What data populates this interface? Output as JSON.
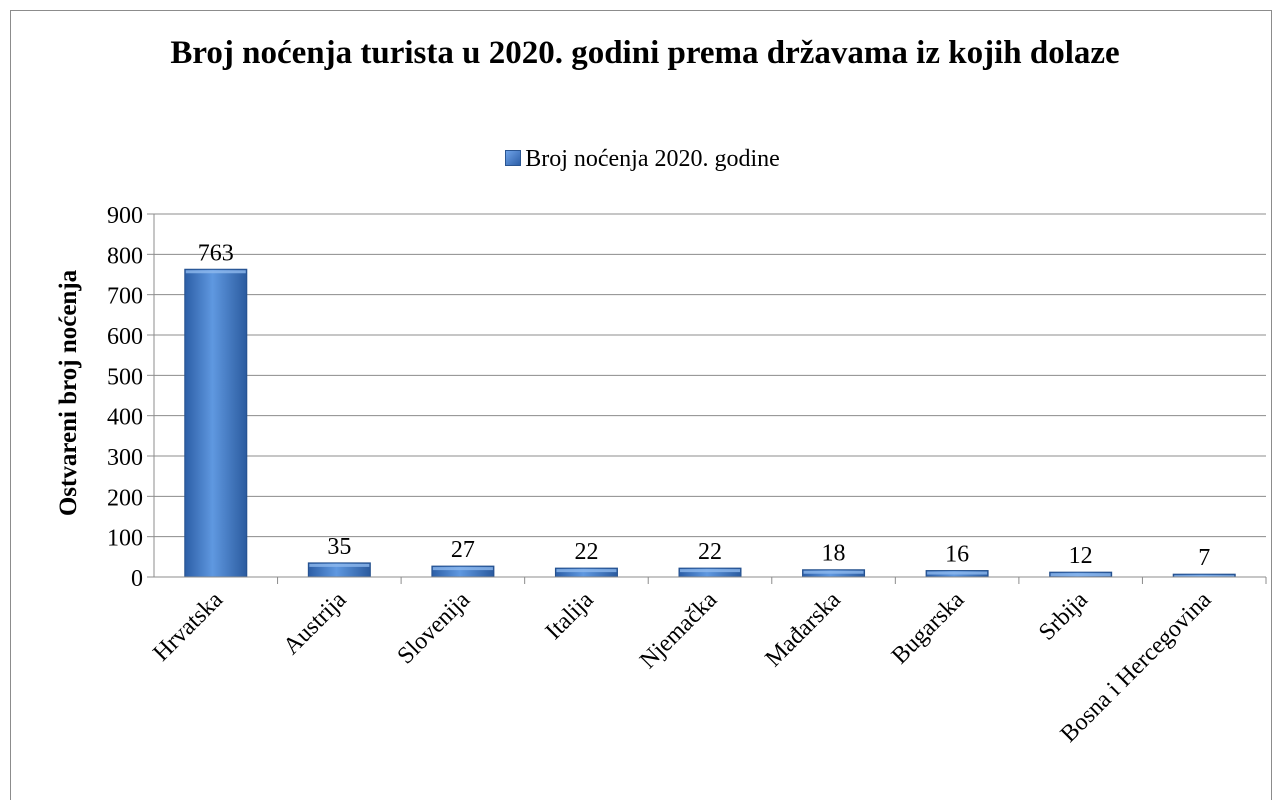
{
  "chart_data": {
    "type": "bar",
    "title": "Broj noćenja turista u 2020. godini prema državama iz kojih dolaze",
    "legend_position": "top",
    "ylabel": "Ostvareni broj noćenja",
    "xlabel": "",
    "ylim": [
      0,
      900
    ],
    "y_ticks": [
      "0",
      "100",
      "200",
      "300",
      "400",
      "500",
      "600",
      "700",
      "800",
      "900"
    ],
    "grid": true,
    "categories": [
      "Hrvatska",
      "Austrija",
      "Slovenija",
      "Italija",
      "Njemačka",
      "Mađarska",
      "Bugarska",
      "Srbija",
      "Bosna i Hercegovina"
    ],
    "series": [
      {
        "name": "Broj noćenja 2020. godine",
        "values": [
          763,
          35,
          27,
          22,
          22,
          18,
          16,
          12,
          7
        ],
        "color": "#3b72c4"
      }
    ]
  }
}
